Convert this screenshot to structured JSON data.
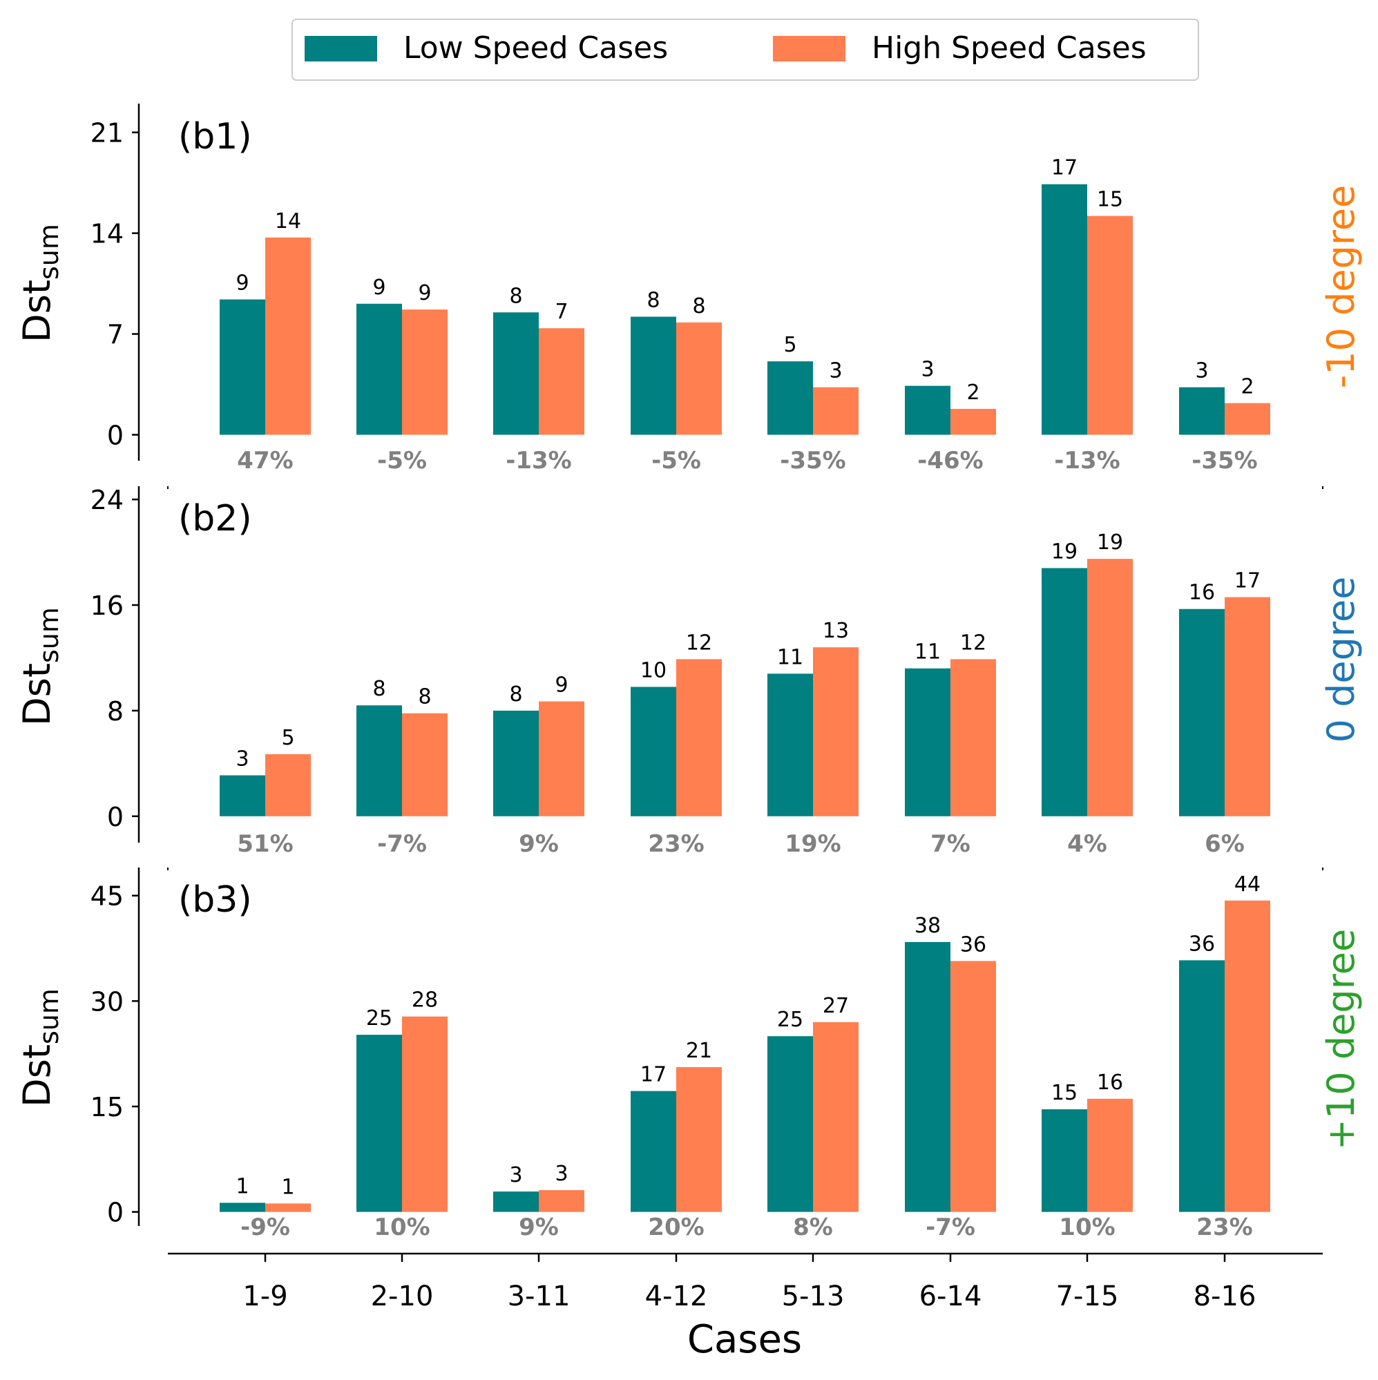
{
  "colors": {
    "low": "#008080",
    "high": "#FF7F50",
    "pct": "#808080",
    "axis": "#000000"
  },
  "legend": {
    "low_label": "Low Speed Cases",
    "high_label": "High Speed Cases"
  },
  "chart_data": {
    "type": "bar",
    "xlabel": "Cases",
    "categories": [
      "1-9",
      "2-10",
      "3-11",
      "4-12",
      "5-13",
      "6-14",
      "7-15",
      "8-16"
    ],
    "series_names": [
      "Low Speed Cases",
      "High Speed Cases"
    ],
    "panels": [
      {
        "id": "b1",
        "label": "(b1)",
        "ylabel": "Dst",
        "ylabel_sub": "sum",
        "side_label": "-10 degree",
        "side_color": "#FF7F0E",
        "ylim": [
          -1.8,
          23
        ],
        "yticks": [
          0,
          7,
          14,
          21
        ],
        "low_values": [
          9.4,
          9.1,
          8.5,
          8.2,
          5.1,
          3.4,
          17.4,
          3.3
        ],
        "high_values": [
          13.7,
          8.7,
          7.4,
          7.8,
          3.3,
          1.8,
          15.2,
          2.2
        ],
        "low_labels": [
          "9",
          "9",
          "8",
          "8",
          "5",
          "3",
          "17",
          "3"
        ],
        "high_labels": [
          "14",
          "9",
          "7",
          "8",
          "3",
          "2",
          "15",
          "2"
        ],
        "pct_labels": [
          "47%",
          "-5%",
          "-13%",
          "-5%",
          "-35%",
          "-46%",
          "-13%",
          "-35%"
        ]
      },
      {
        "id": "b2",
        "label": "(b2)",
        "ylabel": "Dst",
        "ylabel_sub": "sum",
        "side_label": "0 degree",
        "side_color": "#1F77B4",
        "ylim": [
          -2,
          25
        ],
        "yticks": [
          0,
          8,
          16,
          24
        ],
        "low_values": [
          3.1,
          8.4,
          8.0,
          9.8,
          10.8,
          11.2,
          18.8,
          15.7
        ],
        "high_values": [
          4.7,
          7.8,
          8.7,
          11.9,
          12.8,
          11.9,
          19.5,
          16.6
        ],
        "low_labels": [
          "3",
          "8",
          "8",
          "10",
          "11",
          "11",
          "19",
          "16"
        ],
        "high_labels": [
          "5",
          "8",
          "9",
          "12",
          "13",
          "12",
          "19",
          "17"
        ],
        "pct_labels": [
          "51%",
          "-7%",
          "9%",
          "23%",
          "19%",
          "7%",
          "4%",
          "6%"
        ]
      },
      {
        "id": "b3",
        "label": "(b3)",
        "ylabel": "Dst",
        "ylabel_sub": "sum",
        "side_label": "+10 degree",
        "side_color": "#2CA02C",
        "ylim": [
          -2,
          49
        ],
        "yticks": [
          0,
          15,
          30,
          45
        ],
        "low_values": [
          1.3,
          25.2,
          2.9,
          17.2,
          25.0,
          38.4,
          14.6,
          35.8
        ],
        "high_values": [
          1.2,
          27.8,
          3.1,
          20.6,
          27.0,
          35.7,
          16.1,
          44.3
        ],
        "low_labels": [
          "1",
          "25",
          "3",
          "17",
          "25",
          "38",
          "15",
          "36"
        ],
        "high_labels": [
          "1",
          "28",
          "3",
          "21",
          "27",
          "36",
          "16",
          "44"
        ],
        "pct_labels": [
          "-9%",
          "10%",
          "9%",
          "20%",
          "8%",
          "-7%",
          "10%",
          "23%"
        ]
      }
    ]
  }
}
